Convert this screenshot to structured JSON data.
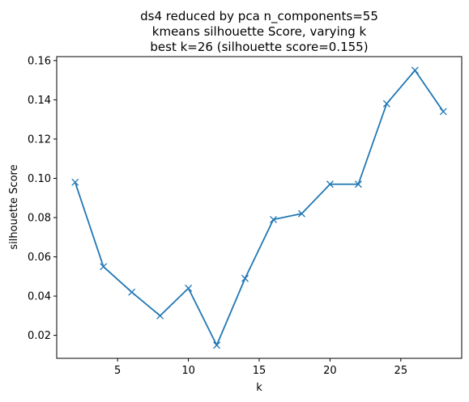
{
  "chart_data": {
    "type": "line",
    "title_lines": [
      "ds4 reduced by pca n_components=55",
      "kmeans silhouette Score, varying k",
      "best k=26 (silhouette score=0.155)"
    ],
    "xlabel": "k",
    "ylabel": "silhouette Score",
    "x": [
      2,
      4,
      6,
      8,
      10,
      12,
      14,
      16,
      18,
      20,
      22,
      24,
      26,
      28
    ],
    "series": [
      {
        "values": [
          0.098,
          0.055,
          0.042,
          0.03,
          0.044,
          0.015,
          0.049,
          0.079,
          0.082,
          0.097,
          0.097,
          0.138,
          0.155,
          0.134
        ],
        "marker": "x",
        "color": "#1f77b4"
      }
    ],
    "xlim": [
      0.7,
      29.3
    ],
    "ylim": [
      0.0083,
      0.162
    ],
    "xticks": [
      5,
      10,
      15,
      20,
      25
    ],
    "xtick_labels": [
      "5",
      "10",
      "15",
      "20",
      "25"
    ],
    "yticks": [
      0.02,
      0.04,
      0.06,
      0.08,
      0.1,
      0.12,
      0.14,
      0.16
    ],
    "ytick_labels": [
      "0.02",
      "0.04",
      "0.06",
      "0.08",
      "0.10",
      "0.12",
      "0.14",
      "0.16"
    ],
    "grid": false,
    "legend": "none"
  }
}
